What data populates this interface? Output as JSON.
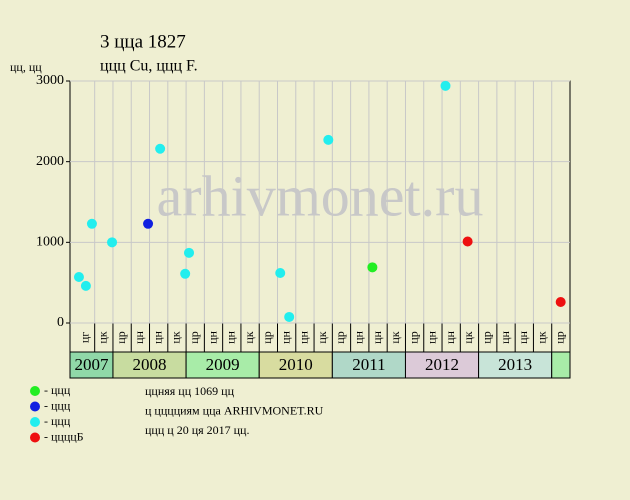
{
  "chart_data": {
    "type": "scatter",
    "title": "3 ццa 1827",
    "subtitle": "ццц Cu, ццц F.",
    "y_label": "цц, цц",
    "watermark": "arhivmonet.ru",
    "xlim": [
      -0.35,
      27
    ],
    "ylim": [
      0,
      3000
    ],
    "yticks": [
      0,
      1000,
      2000,
      3000
    ],
    "grid": true,
    "years": [
      {
        "label": "2007",
        "color": "#90d8a8",
        "periods": [
          "цг",
          "цк"
        ]
      },
      {
        "label": "2008",
        "color": "#c8dca0",
        "periods": [
          "цр",
          "цн",
          "цн",
          "цк"
        ]
      },
      {
        "label": "2009",
        "color": "#a8eca8",
        "periods": [
          "цр",
          "цн",
          "цн",
          "цк"
        ]
      },
      {
        "label": "2010",
        "color": "#d8dca0",
        "periods": [
          "цр",
          "цн",
          "цн",
          "цк"
        ]
      },
      {
        "label": "2011",
        "color": "#b0d8c8",
        "periods": [
          "цр",
          "цн",
          "цн",
          "цк"
        ]
      },
      {
        "label": "2012",
        "color": "#dccad8",
        "periods": [
          "цр",
          "цн",
          "цн",
          "цк"
        ]
      },
      {
        "label": "2013",
        "color": "#c8e4d8",
        "periods": [
          "цр",
          "цн",
          "цн",
          "цк"
        ]
      },
      {
        "label": null,
        "color": "#a8eca8",
        "periods": [
          "цр"
        ]
      }
    ],
    "series": [
      {
        "name": "- ццц",
        "color": "#22ee22",
        "x": [
          16.19
        ],
        "values": [
          690
        ]
      },
      {
        "name": "- ццц",
        "color": "#1020e0",
        "x": [
          3.92
        ],
        "values": [
          1230
        ]
      },
      {
        "name": "- ццц",
        "color": "#22eeee",
        "x": [
          0.14,
          0.52,
          0.85,
          1.95,
          4.58,
          5.95,
          6.16,
          11.15,
          11.64,
          13.78,
          20.19
        ],
        "values": [
          570,
          460,
          1230,
          1000,
          2160,
          610,
          870,
          620,
          75,
          2270,
          2940
        ]
      },
      {
        "name": "- ццццБ",
        "color": "#ee1010",
        "x": [
          21.4,
          26.49
        ],
        "values": [
          1010,
          260
        ]
      }
    ],
    "notes": [
      "ццняя цц 1069 цц",
      "ц цццциям цца ARHIVMONET.RU",
      "ццц ц 20 ця 2017 цц."
    ]
  }
}
